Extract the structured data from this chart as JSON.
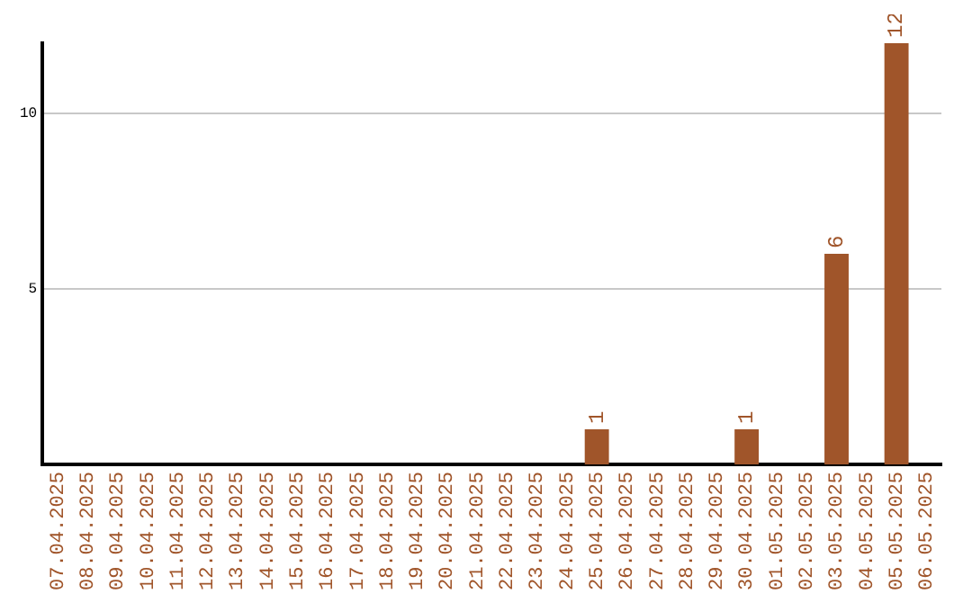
{
  "chart_data": {
    "type": "bar",
    "categories": [
      "07.04.2025",
      "08.04.2025",
      "09.04.2025",
      "10.04.2025",
      "11.04.2025",
      "12.04.2025",
      "13.04.2025",
      "14.04.2025",
      "15.04.2025",
      "16.04.2025",
      "17.04.2025",
      "18.04.2025",
      "19.04.2025",
      "20.04.2025",
      "21.04.2025",
      "22.04.2025",
      "23.04.2025",
      "24.04.2025",
      "25.04.2025",
      "26.04.2025",
      "27.04.2025",
      "28.04.2025",
      "29.04.2025",
      "30.04.2025",
      "01.05.2025",
      "02.05.2025",
      "03.05.2025",
      "04.05.2025",
      "05.05.2025",
      "06.05.2025"
    ],
    "values": [
      0,
      0,
      0,
      0,
      0,
      0,
      0,
      0,
      0,
      0,
      0,
      0,
      0,
      0,
      0,
      0,
      0,
      0,
      1,
      0,
      0,
      0,
      0,
      1,
      0,
      0,
      6,
      0,
      12,
      0
    ],
    "value_labels": [
      null,
      null,
      null,
      null,
      null,
      null,
      null,
      null,
      null,
      null,
      null,
      null,
      null,
      null,
      null,
      null,
      null,
      null,
      "1",
      null,
      null,
      null,
      null,
      "1",
      null,
      null,
      "6",
      null,
      "12",
      null
    ],
    "color": "#a0552a",
    "ylim": [
      0,
      12
    ],
    "yticks": [
      5,
      10
    ],
    "grid": "y",
    "legend": false
  }
}
